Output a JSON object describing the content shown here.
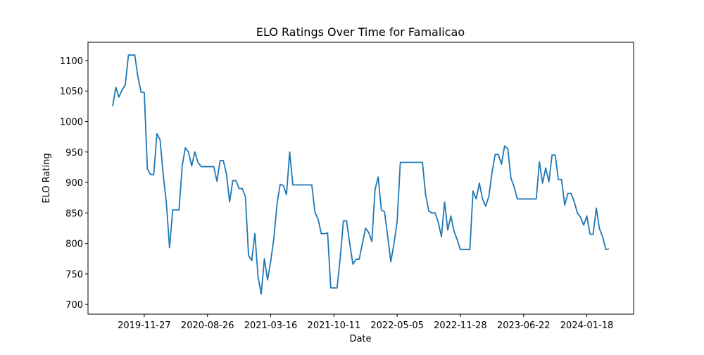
{
  "chart_data": {
    "type": "line",
    "title": "ELO Ratings Over Time for Famalicao",
    "x_label": "Date",
    "y_label": "ELO Rating",
    "categories": [
      null,
      null,
      null,
      null,
      null,
      null,
      null,
      null,
      null,
      null,
      "2019-11-27",
      null,
      null,
      null,
      null,
      null,
      null,
      null,
      null,
      null,
      null,
      null,
      null,
      null,
      null,
      null,
      null,
      null,
      null,
      null,
      "2020-08-26",
      null,
      null,
      null,
      null,
      null,
      null,
      null,
      null,
      null,
      null,
      null,
      null,
      null,
      null,
      null,
      null,
      null,
      null,
      null,
      "2021-03-16",
      null,
      null,
      null,
      null,
      null,
      null,
      null,
      null,
      null,
      null,
      null,
      null,
      null,
      null,
      null,
      null,
      null,
      null,
      null,
      "2021-10-11",
      null,
      null,
      null,
      null,
      null,
      null,
      null,
      null,
      null,
      null,
      null,
      null,
      null,
      null,
      null,
      null,
      null,
      null,
      null,
      "2022-05-05",
      null,
      null,
      null,
      null,
      null,
      null,
      null,
      null,
      null,
      null,
      null,
      null,
      null,
      null,
      null,
      null,
      null,
      null,
      null,
      "2022-11-28",
      null,
      null,
      null,
      null,
      null,
      null,
      null,
      null,
      null,
      null,
      null,
      null,
      null,
      null,
      null,
      null,
      null,
      null,
      null,
      "2023-06-22",
      null,
      null,
      null,
      null,
      null,
      null,
      null,
      null,
      null,
      null,
      null,
      null,
      null,
      null,
      null,
      null,
      null,
      null,
      null,
      "2024-01-18",
      null,
      null,
      null,
      null,
      null,
      null,
      null
    ],
    "series": [
      {
        "name": "Famalicao",
        "color": "#1f77b4",
        "values": [
          1025,
          1056,
          1040,
          1052,
          1060,
          1109,
          1109,
          1109,
          1073,
          1048,
          1048,
          922,
          913,
          913,
          980,
          970,
          913,
          866,
          793,
          855,
          855,
          855,
          927,
          957,
          950,
          927,
          950,
          933,
          926,
          926,
          926,
          926,
          926,
          902,
          936,
          936,
          914,
          868,
          903,
          903,
          890,
          890,
          877,
          780,
          772,
          816,
          745,
          717,
          775,
          740,
          771,
          808,
          865,
          897,
          895,
          880,
          950,
          896,
          896,
          896,
          896,
          896,
          896,
          896,
          851,
          840,
          816,
          816,
          817,
          727,
          727,
          727,
          777,
          837,
          837,
          800,
          766,
          774,
          774,
          800,
          825,
          818,
          803,
          888,
          909,
          855,
          852,
          812,
          770,
          800,
          836,
          933,
          933,
          933,
          933,
          933,
          933,
          933,
          933,
          880,
          853,
          850,
          850,
          835,
          811,
          868,
          822,
          845,
          820,
          806,
          790,
          790,
          790,
          790,
          886,
          873,
          899,
          873,
          861,
          877,
          916,
          946,
          946,
          930,
          960,
          955,
          907,
          893,
          873,
          873,
          873,
          873,
          873,
          873,
          873,
          934,
          899,
          924,
          901,
          945,
          945,
          905,
          905,
          863,
          882,
          882,
          869,
          850,
          843,
          830,
          845,
          815,
          815,
          858,
          824,
          811,
          790,
          791
        ]
      }
    ],
    "ylim": [
      684,
      1130
    ],
    "yticks": [
      700,
      750,
      800,
      850,
      900,
      950,
      1000,
      1050,
      1100
    ]
  }
}
